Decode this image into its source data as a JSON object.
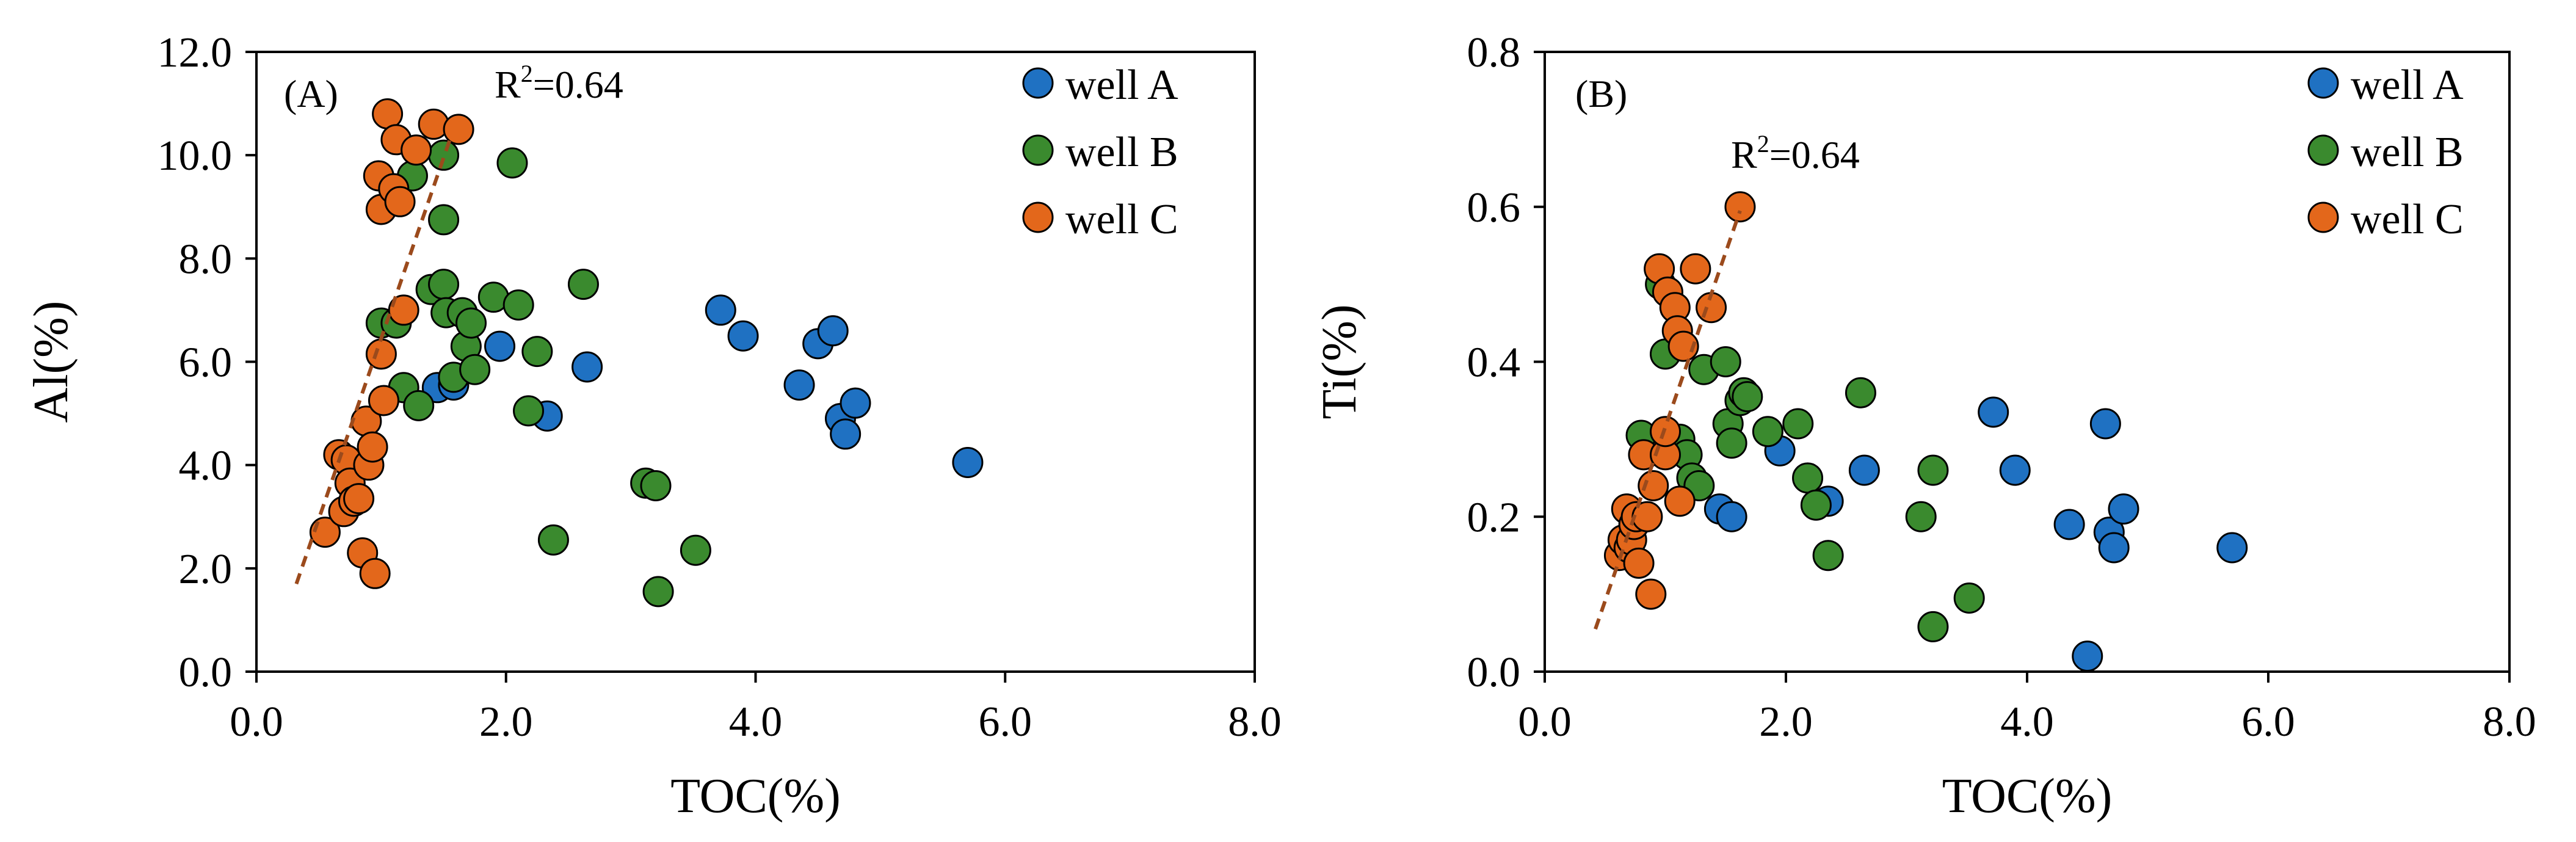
{
  "colors": {
    "well_A": "#1f71c2",
    "well_B": "#3a8a2e",
    "well_C": "#e3671b",
    "trendline": "#9b4a1c",
    "marker_edge": "#000000"
  },
  "chart_data": [
    {
      "type": "scatter",
      "panel_label": "(A)",
      "r2_text": "0.64",
      "r2_prefix": "R",
      "r2_superscript": "2",
      "r2_suffix": "=",
      "xlabel": "TOC(%)",
      "ylabel": "Al(%)",
      "xlim": [
        0,
        8
      ],
      "ylim": [
        0,
        12
      ],
      "x_ticks": [
        0,
        2,
        4,
        6,
        8
      ],
      "x_tick_labels": [
        "0.0",
        "2.0",
        "4.0",
        "6.0",
        "8.0"
      ],
      "y_ticks": [
        0,
        2,
        4,
        6,
        8,
        10,
        12
      ],
      "y_tick_labels": [
        "0.0",
        "2.0",
        "4.0",
        "6.0",
        "8.0",
        "10.0",
        "12.0"
      ],
      "legend_position": "top-right",
      "trendline": {
        "series": "well C",
        "x": [
          0.32,
          1.55
        ],
        "y": [
          1.7,
          10.3
        ],
        "style": "dashed"
      },
      "series": [
        {
          "name": "well A",
          "color_key": "well_A",
          "points": [
            [
              1.45,
              5.5
            ],
            [
              1.58,
              5.55
            ],
            [
              1.95,
              6.3
            ],
            [
              2.33,
              4.95
            ],
            [
              2.65,
              5.9
            ],
            [
              3.72,
              7.0
            ],
            [
              3.9,
              6.5
            ],
            [
              4.35,
              5.55
            ],
            [
              4.5,
              6.35
            ],
            [
              4.62,
              6.6
            ],
            [
              4.68,
              4.9
            ],
            [
              4.72,
              4.6
            ],
            [
              4.8,
              5.2
            ],
            [
              5.7,
              4.05
            ]
          ]
        },
        {
          "name": "well B",
          "color_key": "well_B",
          "points": [
            [
              1.25,
              9.6
            ],
            [
              1.5,
              10.0
            ],
            [
              1.5,
              8.75
            ],
            [
              2.05,
              9.85
            ],
            [
              1.0,
              6.75
            ],
            [
              1.12,
              6.75
            ],
            [
              1.18,
              5.5
            ],
            [
              1.3,
              5.15
            ],
            [
              1.4,
              7.4
            ],
            [
              1.5,
              7.5
            ],
            [
              1.52,
              6.95
            ],
            [
              1.58,
              5.7
            ],
            [
              1.65,
              6.95
            ],
            [
              1.68,
              6.3
            ],
            [
              1.72,
              6.75
            ],
            [
              1.75,
              5.85
            ],
            [
              1.9,
              7.25
            ],
            [
              2.1,
              7.1
            ],
            [
              2.18,
              5.05
            ],
            [
              2.25,
              6.2
            ],
            [
              2.62,
              7.5
            ],
            [
              2.38,
              2.55
            ],
            [
              3.12,
              3.65
            ],
            [
              3.2,
              3.6
            ],
            [
              3.22,
              1.55
            ],
            [
              3.52,
              2.35
            ]
          ]
        },
        {
          "name": "well C",
          "color_key": "well_C",
          "points": [
            [
              0.55,
              2.7
            ],
            [
              0.66,
              4.2
            ],
            [
              0.7,
              3.1
            ],
            [
              0.72,
              4.1
            ],
            [
              0.75,
              3.65
            ],
            [
              0.78,
              3.3
            ],
            [
              0.82,
              3.35
            ],
            [
              0.85,
              2.3
            ],
            [
              0.88,
              4.85
            ],
            [
              0.9,
              4.0
            ],
            [
              0.93,
              4.35
            ],
            [
              0.95,
              1.9
            ],
            [
              0.98,
              9.6
            ],
            [
              1.0,
              8.95
            ],
            [
              1.0,
              6.15
            ],
            [
              1.02,
              5.25
            ],
            [
              1.05,
              10.8
            ],
            [
              1.1,
              9.35
            ],
            [
              1.12,
              10.3
            ],
            [
              1.15,
              9.1
            ],
            [
              1.18,
              7.0
            ],
            [
              1.28,
              10.1
            ],
            [
              1.42,
              10.6
            ],
            [
              1.62,
              10.5
            ]
          ]
        }
      ]
    },
    {
      "type": "scatter",
      "panel_label": "(B)",
      "r2_text": "0.64",
      "r2_prefix": "R",
      "r2_superscript": "2",
      "r2_suffix": "=",
      "xlabel": "TOC(%)",
      "ylabel": "Ti(%)",
      "xlim": [
        0,
        8
      ],
      "ylim": [
        0,
        0.8
      ],
      "x_ticks": [
        0,
        2,
        4,
        6,
        8
      ],
      "x_tick_labels": [
        "0.0",
        "2.0",
        "4.0",
        "6.0",
        "8.0"
      ],
      "y_ticks": [
        0,
        0.2,
        0.4,
        0.6,
        0.8
      ],
      "y_tick_labels": [
        "0.0",
        "0.2",
        "0.4",
        "0.6",
        "0.8"
      ],
      "legend_position": "top-right",
      "trendline": {
        "series": "well C",
        "x": [
          0.42,
          1.62
        ],
        "y": [
          0.055,
          0.595
        ],
        "style": "dashed"
      },
      "series": [
        {
          "name": "well A",
          "color_key": "well_A",
          "points": [
            [
              1.45,
              0.21
            ],
            [
              1.55,
              0.2
            ],
            [
              1.95,
              0.285
            ],
            [
              2.35,
              0.22
            ],
            [
              2.65,
              0.26
            ],
            [
              3.72,
              0.335
            ],
            [
              3.9,
              0.26
            ],
            [
              4.35,
              0.19
            ],
            [
              4.5,
              0.02
            ],
            [
              4.65,
              0.32
            ],
            [
              4.68,
              0.18
            ],
            [
              4.72,
              0.16
            ],
            [
              4.8,
              0.21
            ],
            [
              5.7,
              0.16
            ]
          ]
        },
        {
          "name": "well B",
          "color_key": "well_B",
          "points": [
            [
              0.96,
              0.5
            ],
            [
              1.0,
              0.41
            ],
            [
              0.8,
              0.305
            ],
            [
              1.12,
              0.3
            ],
            [
              1.18,
              0.28
            ],
            [
              1.22,
              0.25
            ],
            [
              1.28,
              0.24
            ],
            [
              1.32,
              0.39
            ],
            [
              1.5,
              0.4
            ],
            [
              1.52,
              0.32
            ],
            [
              1.55,
              0.295
            ],
            [
              1.62,
              0.35
            ],
            [
              1.65,
              0.36
            ],
            [
              1.68,
              0.355
            ],
            [
              1.85,
              0.31
            ],
            [
              2.1,
              0.32
            ],
            [
              2.18,
              0.25
            ],
            [
              2.25,
              0.215
            ],
            [
              2.62,
              0.36
            ],
            [
              2.35,
              0.15
            ],
            [
              3.12,
              0.2
            ],
            [
              3.22,
              0.26
            ],
            [
              3.22,
              0.058
            ],
            [
              3.52,
              0.095
            ]
          ]
        },
        {
          "name": "well C",
          "color_key": "well_C",
          "points": [
            [
              0.62,
              0.15
            ],
            [
              0.65,
              0.17
            ],
            [
              0.68,
              0.21
            ],
            [
              0.7,
              0.16
            ],
            [
              0.72,
              0.17
            ],
            [
              0.74,
              0.19
            ],
            [
              0.76,
              0.2
            ],
            [
              0.78,
              0.14
            ],
            [
              0.82,
              0.28
            ],
            [
              0.85,
              0.2
            ],
            [
              0.88,
              0.1
            ],
            [
              0.9,
              0.24
            ],
            [
              0.95,
              0.52
            ],
            [
              1.0,
              0.28
            ],
            [
              1.0,
              0.31
            ],
            [
              1.02,
              0.49
            ],
            [
              1.08,
              0.47
            ],
            [
              1.1,
              0.44
            ],
            [
              1.12,
              0.22
            ],
            [
              1.15,
              0.42
            ],
            [
              1.25,
              0.52
            ],
            [
              1.38,
              0.47
            ],
            [
              1.62,
              0.6
            ]
          ]
        }
      ]
    }
  ]
}
